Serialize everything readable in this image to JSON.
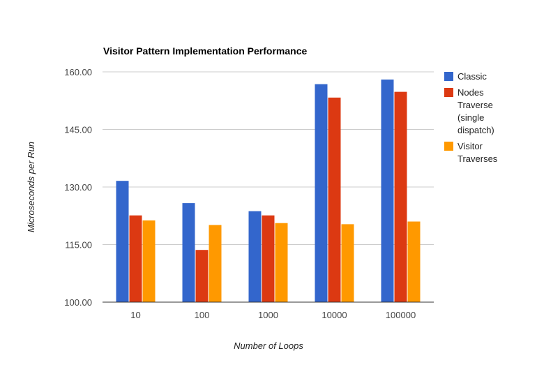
{
  "chart_data": {
    "type": "bar",
    "title": "Visitor Pattern Implementation Performance",
    "xlabel": "Number of Loops",
    "ylabel": "Microseconds per Run",
    "categories": [
      "10",
      "100",
      "1000",
      "10000",
      "100000"
    ],
    "ylim": [
      100,
      160
    ],
    "yticks": [
      "100.00",
      "115.00",
      "130.00",
      "145.00",
      "160.00"
    ],
    "ytick_values": [
      100,
      115,
      130,
      145,
      160
    ],
    "grid": true,
    "legend_position": "right",
    "series": [
      {
        "name": "Classic",
        "legend_lines": [
          "Classic"
        ],
        "color": "#3366cc",
        "values": [
          131.6,
          125.8,
          123.7,
          156.8,
          158.0
        ]
      },
      {
        "name": "Nodes Traverse (single dispatch)",
        "legend_lines": [
          "Nodes",
          "Traverse",
          "(single",
          "dispatch)"
        ],
        "color": "#dc3912",
        "values": [
          122.6,
          113.6,
          122.6,
          153.3,
          154.8
        ]
      },
      {
        "name": "Visitor Traverses",
        "legend_lines": [
          "Visitor",
          "Traverses"
        ],
        "color": "#ff9900",
        "values": [
          121.3,
          120.1,
          120.6,
          120.3,
          121.0
        ]
      }
    ]
  }
}
